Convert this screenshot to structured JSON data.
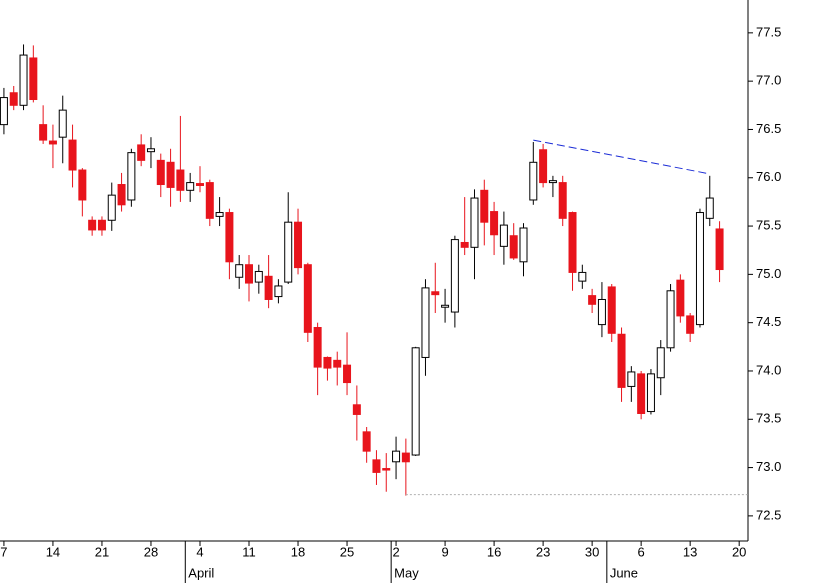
{
  "chart_data": {
    "type": "candlestick",
    "open": [
      76.55,
      76.88,
      76.75,
      77.24,
      76.55,
      76.38,
      76.42,
      76.39,
      76.08,
      75.56,
      75.56,
      75.56,
      75.93,
      75.77,
      76.34,
      76.27,
      76.18,
      76.16,
      76.08,
      75.87,
      75.94,
      75.95,
      75.6,
      75.64,
      74.97,
      75.1,
      74.92,
      74.98,
      74.77,
      74.92,
      75.54,
      75.1,
      74.45,
      74.14,
      74.11,
      74.06,
      73.65,
      73.37,
      73.08,
      72.99,
      73.06,
      73.15,
      73.13,
      74.14,
      74.82,
      74.66,
      74.61,
      75.33,
      75.28,
      75.87,
      75.65,
      75.29,
      75.4,
      75.13,
      75.77,
      76.29,
      75.95,
      75.95,
      75.64,
      74.93,
      74.78,
      74.48,
      74.87,
      74.38,
      73.84,
      73.97,
      73.58,
      73.93,
      74.24,
      74.94,
      74.57,
      74.48,
      75.58,
      75.47
    ],
    "high": [
      76.93,
      76.95,
      77.38,
      77.37,
      76.75,
      76.55,
      76.85,
      76.55,
      76.1,
      75.6,
      75.6,
      75.95,
      76.05,
      76.3,
      76.45,
      76.42,
      76.25,
      76.3,
      76.64,
      76.05,
      76.12,
      75.98,
      75.8,
      75.68,
      75.2,
      75.2,
      75.1,
      75.2,
      74.95,
      75.85,
      75.68,
      75.12,
      74.5,
      74.15,
      74.2,
      74.4,
      73.85,
      73.42,
      73.18,
      73.15,
      73.32,
      73.3,
      74.25,
      74.95,
      75.12,
      74.85,
      75.4,
      75.8,
      75.88,
      75.98,
      75.75,
      75.65,
      75.53,
      75.53,
      76.37,
      76.35,
      76.02,
      76.02,
      75.65,
      75.1,
      74.85,
      74.92,
      74.9,
      74.45,
      74.05,
      74.0,
      74.02,
      74.32,
      74.9,
      75.0,
      74.6,
      75.68,
      76.02,
      75.55
    ],
    "low": [
      76.45,
      76.7,
      76.7,
      76.78,
      76.35,
      76.1,
      76.15,
      75.9,
      75.6,
      75.4,
      75.4,
      75.45,
      75.65,
      75.7,
      76.12,
      76.1,
      75.8,
      75.7,
      75.75,
      75.75,
      75.85,
      75.5,
      75.5,
      74.95,
      74.85,
      74.72,
      74.8,
      74.65,
      74.7,
      74.9,
      75.0,
      74.3,
      73.75,
      73.9,
      73.85,
      73.75,
      73.28,
      73.05,
      72.82,
      72.75,
      72.88,
      72.71,
      73.12,
      73.95,
      74.6,
      74.5,
      74.45,
      75.2,
      74.95,
      75.3,
      75.2,
      75.1,
      75.15,
      74.98,
      75.72,
      75.9,
      75.8,
      75.5,
      74.83,
      74.85,
      74.6,
      74.35,
      74.3,
      73.68,
      73.68,
      73.5,
      73.55,
      73.75,
      74.2,
      74.5,
      74.3,
      74.45,
      75.5,
      74.92
    ],
    "close": [
      76.83,
      76.75,
      77.27,
      76.81,
      76.39,
      76.35,
      76.7,
      76.08,
      75.77,
      75.46,
      75.46,
      75.82,
      75.72,
      76.26,
      76.18,
      76.3,
      75.93,
      75.9,
      75.87,
      75.95,
      75.92,
      75.58,
      75.64,
      75.13,
      75.1,
      74.91,
      75.03,
      74.74,
      74.88,
      75.54,
      75.07,
      74.4,
      74.04,
      74.03,
      74.04,
      73.88,
      73.55,
      73.17,
      72.95,
      72.98,
      73.17,
      73.06,
      74.24,
      74.86,
      74.79,
      74.68,
      75.36,
      75.28,
      75.79,
      75.54,
      75.41,
      75.51,
      75.17,
      75.48,
      76.16,
      75.95,
      75.97,
      75.58,
      75.02,
      75.02,
      74.69,
      74.74,
      74.39,
      73.83,
      73.99,
      73.56,
      73.97,
      74.24,
      74.83,
      74.57,
      74.39,
      75.64,
      75.79,
      75.05
    ],
    "up_color": "#ffffff",
    "down_color": "#e8141c",
    "xlim": [
      -0.4,
      75.9
    ],
    "ylim": [
      72.24,
      77.84
    ],
    "xticks": [
      {
        "value": 0,
        "label": "7"
      },
      {
        "value": 5,
        "label": "14"
      },
      {
        "value": 10,
        "label": "21"
      },
      {
        "value": 15,
        "label": "28"
      },
      {
        "value": 20,
        "label": "4"
      },
      {
        "value": 25,
        "label": "11"
      },
      {
        "value": 30,
        "label": "18"
      },
      {
        "value": 35,
        "label": "25"
      },
      {
        "value": 40,
        "label": "2"
      },
      {
        "value": 45,
        "label": "9"
      },
      {
        "value": 50,
        "label": "16"
      },
      {
        "value": 55,
        "label": "23"
      },
      {
        "value": 60,
        "label": "30"
      },
      {
        "value": 65,
        "label": "6"
      },
      {
        "value": 70,
        "label": "13"
      },
      {
        "value": 75,
        "label": "20"
      }
    ],
    "month_ticks": [
      {
        "value": 18.5,
        "label": "April"
      },
      {
        "value": 39.5,
        "label": "May"
      },
      {
        "value": 61.5,
        "label": "June"
      }
    ],
    "yticks": [
      72.5,
      {
        "value": 73,
        "label": "73.0"
      },
      73.5,
      {
        "value": 74,
        "label": "74.0"
      },
      74.5,
      {
        "value": 75,
        "label": "75.0"
      },
      75.5,
      {
        "value": 76,
        "label": "76.0"
      },
      76.5,
      {
        "value": 77,
        "label": "77.0"
      },
      77.5
    ],
    "trendline": {
      "x": [
        54,
        72
      ],
      "y": [
        76.39,
        76.04
      ],
      "color": "#1a2bd6"
    },
    "support": {
      "x": [
        41,
        75.9
      ],
      "y": [
        72.72,
        72.72
      ],
      "color": "#b0b0b0"
    }
  }
}
